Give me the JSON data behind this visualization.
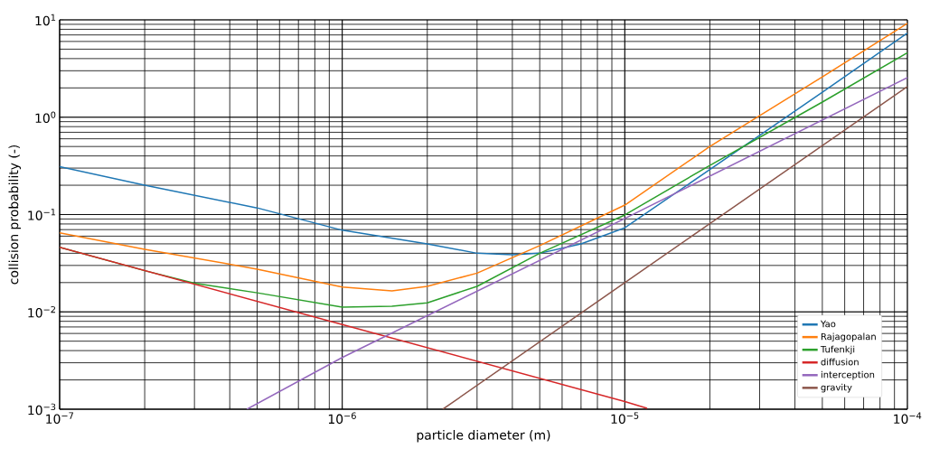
{
  "chart_data": {
    "type": "line",
    "xlabel": "particle diameter (m)",
    "ylabel": "collision probability (-)",
    "log": "xy",
    "grid": true,
    "legend": "bottom right",
    "line_style": "solid",
    "marker": "none",
    "xlim": [
      1e-07,
      0.0001
    ],
    "ylim": [
      0.001,
      10
    ],
    "xticks": [
      {
        "value": 1e-07,
        "label": "10$^{−7}$"
      },
      {
        "value": 1e-06,
        "label": "10$^{−6}$"
      },
      {
        "value": 1e-05,
        "label": "10$^{−5}$"
      },
      {
        "value": 0.0001,
        "label": "10$^{−4}$"
      }
    ],
    "yticks": [
      {
        "value": 0.001,
        "label": "10$^{−3}$"
      },
      {
        "value": 0.01,
        "label": "10$^{−2}$"
      },
      {
        "value": 0.1,
        "label": "10$^{−1}$"
      },
      {
        "value": 1,
        "label": "10$^{0}$"
      },
      {
        "value": 10,
        "label": "10$^{1}$"
      }
    ],
    "series": [
      {
        "name": "Yao",
        "color": "#1f77b4",
        "x": [
          1e-07,
          2e-07,
          5e-07,
          1e-06,
          2e-06,
          3e-06,
          4e-06,
          5e-06,
          7e-06,
          1e-05,
          2e-05,
          3e-05,
          5e-05,
          0.0001
        ],
        "values": [
          0.31,
          0.2,
          0.117,
          0.069,
          0.05,
          0.04,
          0.0386,
          0.04,
          0.05,
          0.073,
          0.29,
          0.65,
          1.8,
          7.3
        ]
      },
      {
        "name": "Rajagopalan",
        "color": "#ff7f0e",
        "x": [
          1e-07,
          2e-07,
          5e-07,
          1e-06,
          1.5e-06,
          2e-06,
          3e-06,
          5e-06,
          1e-05,
          2e-05,
          5e-05,
          0.0001
        ],
        "values": [
          0.065,
          0.044,
          0.0275,
          0.018,
          0.0164,
          0.0183,
          0.025,
          0.048,
          0.125,
          0.5,
          2.6,
          9.2
        ]
      },
      {
        "name": "Tufenkji",
        "color": "#2ca02c",
        "x": [
          1e-07,
          2e-07,
          3e-07,
          5e-07,
          1e-06,
          1.5e-06,
          2e-06,
          3e-06,
          5e-06,
          1e-05,
          2e-05,
          5e-05,
          0.0001
        ],
        "values": [
          0.046,
          0.0265,
          0.0197,
          0.0157,
          0.0112,
          0.0114,
          0.0124,
          0.0183,
          0.04,
          0.099,
          0.32,
          1.43,
          4.6
        ]
      },
      {
        "name": "diffusion",
        "color": "#d62728",
        "x": [
          1e-07,
          1e-06,
          1e-05,
          1.2e-05
        ],
        "values": [
          0.046,
          0.0074,
          0.0012,
          0.00102
        ]
      },
      {
        "name": "interception",
        "color": "#9467bd",
        "x": [
          4.6e-07,
          1e-06,
          1e-05,
          0.0001
        ],
        "values": [
          0.001,
          0.0034,
          0.091,
          2.55
        ]
      },
      {
        "name": "gravity",
        "color": "#8c564b",
        "x": [
          2.27e-06,
          1e-05,
          0.0001
        ],
        "values": [
          0.001,
          0.02,
          2.06
        ]
      }
    ]
  }
}
